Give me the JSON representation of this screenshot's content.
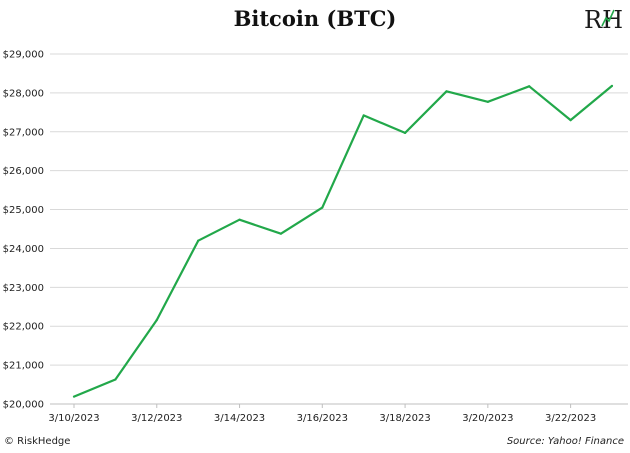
{
  "chart_data": {
    "type": "line",
    "title": "Bitcoin (BTC)",
    "xlabel": "",
    "ylabel": "",
    "x": [
      "3/10/2023",
      "3/11/2023",
      "3/12/2023",
      "3/13/2023",
      "3/14/2023",
      "3/15/2023",
      "3/16/2023",
      "3/17/2023",
      "3/18/2023",
      "3/19/2023",
      "3/20/2023",
      "3/21/2023",
      "3/22/2023",
      "3/23/2023"
    ],
    "x_tick_labels": [
      "3/10/2023",
      "3/12/2023",
      "3/14/2023",
      "3/16/2023",
      "3/18/2023",
      "3/20/2023",
      "3/22/2023"
    ],
    "y_tick_labels": [
      "$20,000",
      "$21,000",
      "$22,000",
      "$23,000",
      "$24,000",
      "$25,000",
      "$26,000",
      "$27,000",
      "$28,000",
      "$29,000"
    ],
    "series": [
      {
        "values": [
          20190,
          20630,
          22160,
          24200,
          24740,
          24380,
          25050,
          27420,
          26970,
          28040,
          27770,
          28170,
          27300,
          28180
        ]
      }
    ],
    "ylim": [
      20000,
      29000
    ],
    "grid": true,
    "line_color": "#22a84a"
  },
  "logo": {
    "text": "RH"
  },
  "footer": {
    "left": "© RiskHedge",
    "right": "Source: Yahoo! Finance"
  }
}
